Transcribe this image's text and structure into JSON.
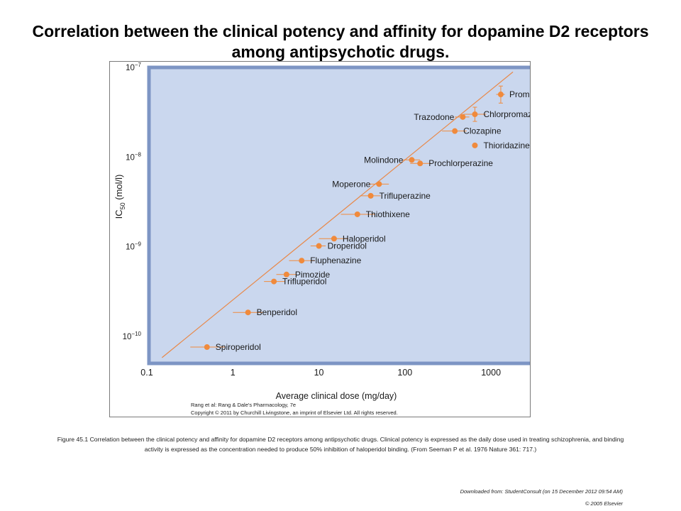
{
  "slide": {
    "title": "Correlation between the clinical potency and affinity for dopamine D2 receptors among antipsychotic drugs.",
    "caption": "Figure 45.1 Correlation between the clinical potency and affinity for dopamine D2 receptors among antipsychotic drugs. Clinical potency is expressed as the daily dose used in treating schizophrenia, and binding activity is expressed as the concentration needed to produce 50% inhibition of haloperidol binding. (From Seeman P et al. 1976 Nature 361: 717.)",
    "footer_source": "Downloaded from: StudentConsult (on 15 December 2012 09:54 AM)",
    "footer_copyright": "© 2005 Elsevier"
  },
  "figure": {
    "credit_line1": "Rang et al: Rang & Dale's Pharmacology, 7e",
    "credit_line2": "Copyright © 2011 by Churchill Livingstone, an imprint of Elsevier Ltd. All rights reserved."
  },
  "colors": {
    "plot_background": "#cad7ee",
    "marker": "#f08a3c",
    "fit_line": "#e8894a",
    "axis_text": "#1a1a1a"
  },
  "chart_data": {
    "type": "scatter",
    "xlabel": "Average clinical dose (mg/day)",
    "ylabel_main": "IC",
    "ylabel_sub": "50",
    "ylabel_units": " (mol/l)",
    "xscale": "log",
    "yscale": "log",
    "xlim": [
      0.1,
      3000
    ],
    "ylim": [
      5e-11,
      1e-07
    ],
    "x_ticks": [
      {
        "value": 0.1,
        "label": "0.1"
      },
      {
        "value": 1,
        "label": "1"
      },
      {
        "value": 10,
        "label": "10"
      },
      {
        "value": 100,
        "label": "100"
      },
      {
        "value": 1000,
        "label": "1000"
      }
    ],
    "y_ticks": [
      {
        "value": 1e-07,
        "base": "10",
        "exp": "−7"
      },
      {
        "value": 1e-08,
        "base": "10",
        "exp": "−8"
      },
      {
        "value": 1e-09,
        "base": "10",
        "exp": "−9"
      },
      {
        "value": 1e-10,
        "base": "10",
        "exp": "−10"
      }
    ],
    "grid": false,
    "fit_line": {
      "x": [
        0.15,
        1800
      ],
      "y": [
        5.8e-11,
        8.9e-08
      ]
    },
    "points": [
      {
        "name": "Promazine",
        "x": 1300,
        "y": 5e-08,
        "xerr": [
          1150,
          1450
        ],
        "yerr": [
          4e-08,
          6.2e-08
        ],
        "label_side": "right"
      },
      {
        "name": "Chlorpromazine",
        "x": 650,
        "y": 3e-08,
        "xerr": [
          480,
          880
        ],
        "yerr": [
          2.5e-08,
          3.6e-08
        ],
        "label_side": "right"
      },
      {
        "name": "Trazodone",
        "x": 470,
        "y": 2.8e-08,
        "xerr": [
          380,
          560
        ],
        "yerr": null,
        "label_side": "left"
      },
      {
        "name": "Clozapine",
        "x": 380,
        "y": 1.95e-08,
        "xerr": [
          270,
          520
        ],
        "yerr": null,
        "label_side": "right"
      },
      {
        "name": "Thioridazine",
        "x": 650,
        "y": 1.35e-08,
        "xerr": null,
        "yerr": null,
        "label_side": "right"
      },
      {
        "name": "Molindone",
        "x": 120,
        "y": 9.3e-09,
        "xerr": [
          95,
          150
        ],
        "yerr": null,
        "label_side": "left"
      },
      {
        "name": "Prochlorperazine",
        "x": 150,
        "y": 8.5e-09,
        "xerr": [
          115,
          200
        ],
        "yerr": null,
        "label_side": "right"
      },
      {
        "name": "Moperone",
        "x": 50,
        "y": 5e-09,
        "xerr": [
          38,
          65
        ],
        "yerr": null,
        "label_side": "left"
      },
      {
        "name": "Trifluperazine",
        "x": 40,
        "y": 3.7e-09,
        "xerr": [
          30,
          52
        ],
        "yerr": null,
        "label_side": "right"
      },
      {
        "name": "Thiothixene",
        "x": 28,
        "y": 2.3e-09,
        "xerr": [
          18,
          45
        ],
        "yerr": null,
        "label_side": "right"
      },
      {
        "name": "Haloperidol",
        "x": 15,
        "y": 1.23e-09,
        "xerr": [
          10,
          22
        ],
        "yerr": null,
        "label_side": "right"
      },
      {
        "name": "Droperidol",
        "x": 10,
        "y": 1.02e-09,
        "xerr": [
          8,
          12
        ],
        "yerr": null,
        "label_side": "right"
      },
      {
        "name": "Fluphenazine",
        "x": 6.3,
        "y": 7e-10,
        "xerr": [
          4.5,
          9
        ],
        "yerr": null,
        "label_side": "right"
      },
      {
        "name": "Pimozide",
        "x": 4.2,
        "y": 4.9e-10,
        "xerr": [
          3.2,
          5.5
        ],
        "yerr": null,
        "label_side": "right"
      },
      {
        "name": "Trifluperidol",
        "x": 3.0,
        "y": 4.1e-10,
        "xerr": [
          2.3,
          4.0
        ],
        "yerr": null,
        "label_side": "right"
      },
      {
        "name": "Benperidol",
        "x": 1.5,
        "y": 1.85e-10,
        "xerr": [
          1.0,
          2.2
        ],
        "yerr": null,
        "label_side": "right"
      },
      {
        "name": "Spiroperidol",
        "x": 0.5,
        "y": 7.6e-11,
        "xerr": [
          0.32,
          0.8
        ],
        "yerr": null,
        "label_side": "right"
      }
    ]
  }
}
